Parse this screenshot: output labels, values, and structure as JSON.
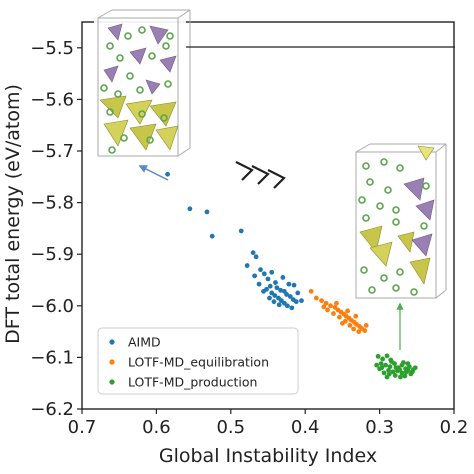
{
  "chart_data": {
    "type": "scatter",
    "xlabel": "Global Instability Index",
    "ylabel": "DFT total energy (eV/atom)",
    "xlim": [
      0.7,
      0.2
    ],
    "ylim": [
      -6.2,
      -5.45
    ],
    "x_reversed": true,
    "xticks": [
      0.7,
      0.6,
      0.5,
      0.4,
      0.3,
      0.2
    ],
    "xtick_labels": [
      "0.7",
      "0.6",
      "0.5",
      "0.4",
      "0.3",
      "0.2"
    ],
    "yticks": [
      -5.5,
      -5.6,
      -5.7,
      -5.8,
      -5.9,
      -6.0,
      -6.1,
      -6.2
    ],
    "ytick_labels": [
      "−5.5",
      "−5.6",
      "−5.7",
      "−5.8",
      "−5.9",
      "−6.0",
      "−6.1",
      "−6.2"
    ],
    "legend_position": "lower-left",
    "series": [
      {
        "name": "AIMD",
        "color": "#1f77b4",
        "points": [
          [
            0.585,
            -5.745
          ],
          [
            0.555,
            -5.812
          ],
          [
            0.532,
            -5.818
          ],
          [
            0.525,
            -5.865
          ],
          [
            0.486,
            -5.855
          ],
          [
            0.47,
            -5.897
          ],
          [
            0.466,
            -5.905
          ],
          [
            0.478,
            -5.922
          ],
          [
            0.46,
            -5.93
          ],
          [
            0.455,
            -5.938
          ],
          [
            0.468,
            -5.942
          ],
          [
            0.45,
            -5.948
          ],
          [
            0.445,
            -5.935
          ],
          [
            0.44,
            -5.955
          ],
          [
            0.462,
            -5.958
          ],
          [
            0.447,
            -5.962
          ],
          [
            0.438,
            -5.965
          ],
          [
            0.452,
            -5.968
          ],
          [
            0.433,
            -5.97
          ],
          [
            0.445,
            -5.975
          ],
          [
            0.428,
            -5.972
          ],
          [
            0.441,
            -5.98
          ],
          [
            0.425,
            -5.978
          ],
          [
            0.436,
            -5.985
          ],
          [
            0.42,
            -5.982
          ],
          [
            0.432,
            -5.99
          ],
          [
            0.416,
            -5.988
          ],
          [
            0.428,
            -5.995
          ],
          [
            0.412,
            -5.992
          ],
          [
            0.424,
            -6.0
          ],
          [
            0.435,
            -5.998
          ],
          [
            0.418,
            -6.004
          ],
          [
            0.43,
            -5.945
          ],
          [
            0.422,
            -5.958
          ],
          [
            0.448,
            -5.985
          ],
          [
            0.41,
            -5.975
          ],
          [
            0.456,
            -5.972
          ],
          [
            0.415,
            -5.96
          ],
          [
            0.442,
            -5.992
          ],
          [
            0.405,
            -5.99
          ]
        ]
      },
      {
        "name": "LOTF-MD_equilibration",
        "color": "#ff7f0e",
        "points": [
          [
            0.392,
            -5.972
          ],
          [
            0.385,
            -5.985
          ],
          [
            0.378,
            -5.99
          ],
          [
            0.372,
            -5.995
          ],
          [
            0.366,
            -6.0
          ],
          [
            0.36,
            -6.003
          ],
          [
            0.356,
            -6.008
          ],
          [
            0.352,
            -6.012
          ],
          [
            0.348,
            -6.016
          ],
          [
            0.345,
            -6.02
          ],
          [
            0.341,
            -6.024
          ],
          [
            0.338,
            -6.028
          ],
          [
            0.334,
            -6.032
          ],
          [
            0.331,
            -6.036
          ],
          [
            0.327,
            -6.04
          ],
          [
            0.324,
            -6.044
          ],
          [
            0.362,
            -6.015
          ],
          [
            0.354,
            -6.022
          ],
          [
            0.346,
            -6.03
          ],
          [
            0.34,
            -6.038
          ],
          [
            0.37,
            -6.008
          ],
          [
            0.335,
            -6.045
          ],
          [
            0.328,
            -6.05
          ],
          [
            0.375,
            -6.002
          ],
          [
            0.358,
            -5.995
          ],
          [
            0.343,
            -6.01
          ],
          [
            0.32,
            -6.048
          ],
          [
            0.332,
            -6.02
          ],
          [
            0.35,
            -6.034
          ],
          [
            0.318,
            -6.038
          ]
        ]
      },
      {
        "name": "LOTF-MD_production",
        "color": "#2ca02c",
        "points": [
          [
            0.302,
            -6.098
          ],
          [
            0.296,
            -6.103
          ],
          [
            0.29,
            -6.097
          ],
          [
            0.285,
            -6.105
          ],
          [
            0.298,
            -6.112
          ],
          [
            0.292,
            -6.115
          ],
          [
            0.286,
            -6.118
          ],
          [
            0.28,
            -6.112
          ],
          [
            0.275,
            -6.12
          ],
          [
            0.27,
            -6.115
          ],
          [
            0.265,
            -6.122
          ],
          [
            0.26,
            -6.118
          ],
          [
            0.255,
            -6.124
          ],
          [
            0.288,
            -6.125
          ],
          [
            0.282,
            -6.128
          ],
          [
            0.276,
            -6.126
          ],
          [
            0.27,
            -6.13
          ],
          [
            0.264,
            -6.128
          ],
          [
            0.258,
            -6.132
          ],
          [
            0.294,
            -6.13
          ],
          [
            0.3,
            -6.122
          ],
          [
            0.279,
            -6.135
          ],
          [
            0.272,
            -6.138
          ],
          [
            0.266,
            -6.136
          ],
          [
            0.284,
            -6.108
          ],
          [
            0.268,
            -6.11
          ],
          [
            0.262,
            -6.112
          ],
          [
            0.252,
            -6.12
          ],
          [
            0.304,
            -6.115
          ],
          [
            0.29,
            -6.138
          ],
          [
            0.278,
            -6.12
          ],
          [
            0.262,
            -6.125
          ],
          [
            0.287,
            -6.132
          ],
          [
            0.273,
            -6.124
          ],
          [
            0.297,
            -6.12
          ],
          [
            0.256,
            -6.128
          ]
        ]
      }
    ]
  }
}
